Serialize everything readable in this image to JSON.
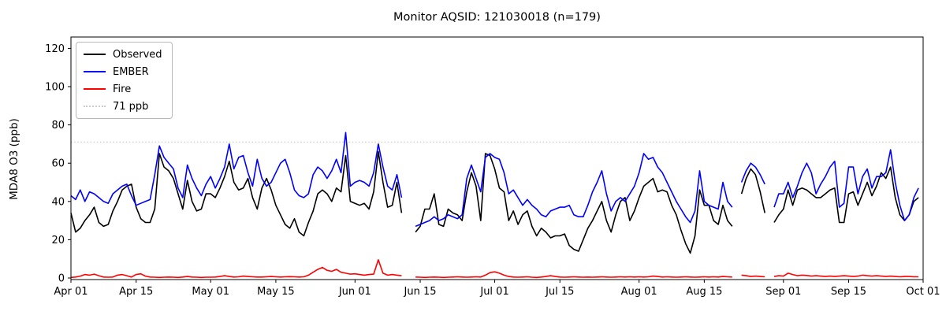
{
  "title": "Monitor AQSID: 121030018 (n=179)",
  "chart_data": {
    "type": "line",
    "title": "Monitor AQSID: 121030018 (n=179)",
    "xlabel": "",
    "ylabel": "MDA8 O3 (ppb)",
    "x_unit": "daily, day index 0 = Apr 01",
    "n_points": 179,
    "ylim": [
      -1,
      126
    ],
    "y_ticks": [
      0,
      20,
      40,
      60,
      80,
      100,
      120
    ],
    "x_tick_labels": [
      "Apr 01",
      "Apr 15",
      "May 01",
      "May 15",
      "Jun 01",
      "Jun 15",
      "Jul 01",
      "Jul 15",
      "Aug 01",
      "Aug 15",
      "Sep 01",
      "Sep 15",
      "Oct 01"
    ],
    "x_tick_days": [
      0,
      14,
      30,
      44,
      61,
      75,
      91,
      105,
      122,
      136,
      153,
      167,
      183
    ],
    "x_range_days": 183,
    "grid": false,
    "legend_position": "upper left",
    "threshold": {
      "label": "71 ppb",
      "value": 71,
      "color": "#cccccc",
      "style": "dotted"
    },
    "series": [
      {
        "name": "Observed",
        "color": "#000000",
        "values": [
          34,
          24,
          26,
          30,
          33,
          37,
          29,
          27,
          28,
          35,
          40,
          46,
          48,
          49,
          37,
          31,
          29,
          29,
          36,
          65,
          58,
          56,
          52,
          44,
          36,
          51,
          40,
          35,
          36,
          44,
          44,
          42,
          47,
          53,
          61,
          50,
          46,
          47,
          52,
          42,
          36,
          47,
          52,
          46,
          38,
          33,
          28,
          26,
          31,
          24,
          22,
          29,
          35,
          44,
          46,
          44,
          40,
          47,
          45,
          64,
          40,
          39,
          38,
          39,
          36,
          45,
          66,
          50,
          37,
          38,
          50,
          34,
          null,
          null,
          24,
          27,
          36,
          36,
          44,
          28,
          27,
          36,
          34,
          33,
          30,
          45,
          55,
          48,
          30,
          65,
          64,
          57,
          47,
          45,
          30,
          35,
          28,
          33,
          35,
          27,
          22,
          26,
          24,
          21,
          22,
          22,
          23,
          17,
          15,
          14,
          20,
          26,
          30,
          35,
          40,
          30,
          24,
          33,
          40,
          42,
          30,
          35,
          42,
          48,
          50,
          52,
          45,
          46,
          45,
          38,
          33,
          25,
          18,
          13,
          22,
          46,
          38,
          38,
          30,
          28,
          38,
          30,
          27,
          null,
          44,
          52,
          57,
          54,
          45,
          34,
          null,
          29,
          33,
          36,
          46,
          38,
          46,
          47,
          46,
          44,
          42,
          42,
          44,
          46,
          47,
          29,
          29,
          44,
          45,
          38,
          44,
          50,
          43,
          48,
          55,
          52,
          58,
          42,
          33,
          30,
          33,
          40,
          42
        ]
      },
      {
        "name": "EMBER",
        "color": "#0000ff",
        "values": [
          43,
          41,
          46,
          40,
          45,
          44,
          42,
          40,
          39,
          44,
          46,
          48,
          49,
          43,
          38,
          39,
          40,
          41,
          54,
          69,
          63,
          60,
          57,
          47,
          42,
          59,
          52,
          47,
          43,
          49,
          53,
          47,
          52,
          58,
          70,
          57,
          63,
          64,
          55,
          48,
          62,
          52,
          48,
          50,
          55,
          60,
          62,
          55,
          46,
          43,
          42,
          44,
          54,
          58,
          56,
          52,
          56,
          62,
          55,
          76,
          48,
          50,
          51,
          50,
          48,
          55,
          70,
          58,
          48,
          46,
          54,
          42,
          null,
          null,
          27,
          28,
          29,
          30,
          32,
          30,
          31,
          33,
          32,
          31,
          33,
          52,
          59,
          52,
          45,
          63,
          65,
          63,
          62,
          55,
          44,
          46,
          42,
          38,
          41,
          38,
          36,
          33,
          32,
          35,
          36,
          37,
          37,
          38,
          33,
          32,
          32,
          38,
          45,
          50,
          56,
          44,
          35,
          40,
          42,
          40,
          44,
          48,
          55,
          65,
          62,
          63,
          58,
          55,
          50,
          45,
          40,
          36,
          32,
          29,
          35,
          56,
          40,
          38,
          37,
          36,
          50,
          40,
          37,
          null,
          50,
          56,
          60,
          58,
          54,
          49,
          null,
          37,
          44,
          44,
          50,
          42,
          48,
          55,
          60,
          55,
          44,
          49,
          53,
          58,
          61,
          37,
          39,
          58,
          58,
          44,
          53,
          57,
          47,
          53,
          53,
          55,
          67,
          50,
          38,
          30,
          33,
          42,
          47
        ]
      },
      {
        "name": "Fire",
        "color": "#ff0000",
        "values": [
          0.3,
          0.5,
          1.0,
          1.8,
          1.5,
          2.0,
          1.2,
          0.5,
          0.4,
          0.5,
          1.5,
          1.8,
          1.2,
          0.5,
          1.8,
          2.2,
          1.0,
          0.5,
          0.4,
          0.3,
          0.4,
          0.5,
          0.4,
          0.3,
          0.5,
          0.8,
          0.5,
          0.4,
          0.3,
          0.4,
          0.4,
          0.5,
          0.8,
          1.2,
          0.8,
          0.5,
          0.6,
          1.0,
          0.8,
          0.6,
          0.5,
          0.5,
          0.6,
          0.8,
          0.6,
          0.5,
          0.6,
          0.7,
          0.6,
          0.5,
          0.6,
          1.5,
          3.0,
          4.5,
          5.5,
          4.0,
          3.5,
          4.5,
          3.0,
          2.5,
          2.0,
          2.2,
          1.8,
          1.5,
          1.8,
          2.0,
          9.5,
          2.5,
          1.5,
          1.8,
          1.5,
          1.2,
          null,
          null,
          0.5,
          0.4,
          0.3,
          0.4,
          0.5,
          0.4,
          0.3,
          0.4,
          0.5,
          0.6,
          0.5,
          0.4,
          0.5,
          0.6,
          0.5,
          1.5,
          2.8,
          3.2,
          2.5,
          1.5,
          0.8,
          0.5,
          0.4,
          0.5,
          0.6,
          0.4,
          0.3,
          0.5,
          0.8,
          1.2,
          0.8,
          0.5,
          0.4,
          0.5,
          0.6,
          0.5,
          0.4,
          0.5,
          0.4,
          0.5,
          0.6,
          0.5,
          0.4,
          0.5,
          0.6,
          0.5,
          0.6,
          0.5,
          0.6,
          0.5,
          0.6,
          1.0,
          0.8,
          0.5,
          0.6,
          0.5,
          0.4,
          0.5,
          0.6,
          0.5,
          0.4,
          0.5,
          0.6,
          0.5,
          0.6,
          0.5,
          0.8,
          0.6,
          0.5,
          null,
          1.5,
          1.2,
          0.8,
          1.0,
          0.8,
          0.6,
          null,
          0.8,
          1.2,
          1.0,
          2.5,
          1.8,
          1.2,
          1.5,
          1.3,
          1.0,
          1.2,
          1.0,
          0.8,
          1.0,
          0.8,
          1.0,
          1.2,
          1.0,
          0.8,
          1.0,
          1.5,
          1.2,
          1.0,
          1.2,
          1.0,
          0.8,
          1.0,
          0.8,
          0.6,
          0.8,
          0.8,
          0.6,
          0.6
        ]
      }
    ]
  }
}
